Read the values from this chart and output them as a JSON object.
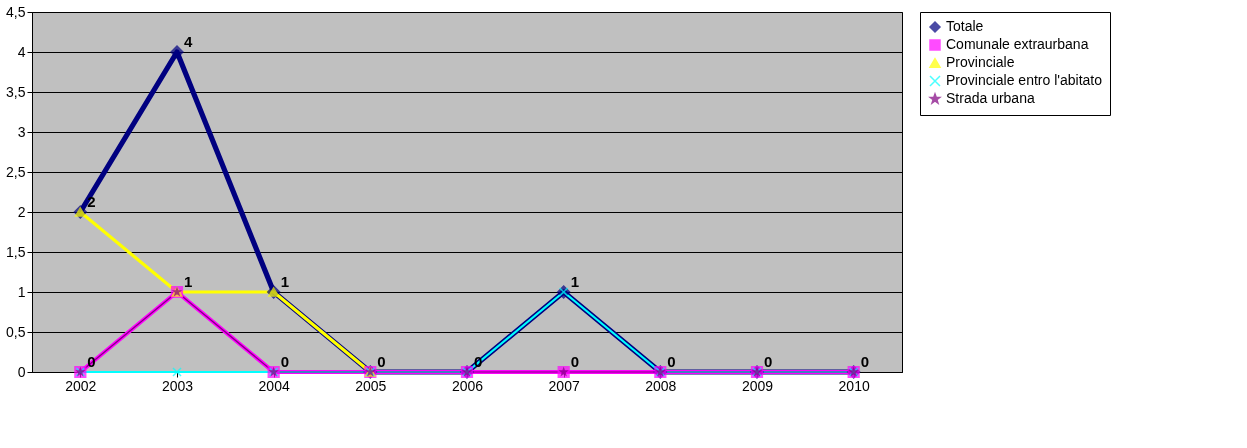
{
  "chart_data": {
    "type": "line",
    "categories": [
      "2002",
      "2003",
      "2004",
      "2005",
      "2006",
      "2007",
      "2008",
      "2009",
      "2010"
    ],
    "series": [
      {
        "name": "Totale",
        "color": "#000080",
        "marker": "diamond",
        "values": [
          2,
          4,
          1,
          0,
          0,
          1,
          0,
          0,
          0
        ],
        "value_labels": [
          "2",
          "4",
          "1",
          null,
          null,
          "1",
          null,
          null,
          null
        ]
      },
      {
        "name": "Comunale extraurbana",
        "color": "#ff00ff",
        "marker": "square",
        "values": [
          0,
          1,
          0,
          0,
          0,
          0,
          0,
          0,
          0
        ]
      },
      {
        "name": "Provinciale",
        "color": "#ffff00",
        "marker": "triangle",
        "values": [
          2,
          1,
          1,
          0,
          null,
          null,
          null,
          null,
          null
        ]
      },
      {
        "name": "Provinciale entro l'abitato",
        "color": "#00ffff",
        "marker": "cross",
        "values": [
          0,
          0,
          0,
          0,
          0,
          1,
          0,
          0,
          0
        ]
      },
      {
        "name": "Strada urbana",
        "color": "#800080",
        "marker": "star",
        "values": [
          0,
          1,
          0,
          0,
          0,
          0,
          0,
          0,
          0
        ],
        "value_labels": [
          "0",
          "1",
          "0",
          "0",
          "0",
          "0",
          "0",
          "0",
          "0"
        ]
      }
    ],
    "ylim": [
      0,
      4.5
    ],
    "yticks": [
      0,
      {
        "value": 0.5,
        "label": "0,5"
      },
      1,
      {
        "value": 1.5,
        "label": "1,5"
      },
      2,
      {
        "value": 2.5,
        "label": "2,5"
      },
      3,
      {
        "value": 3.5,
        "label": "3,5"
      },
      4,
      {
        "value": 4.5,
        "label": "4,5"
      }
    ],
    "grid": "y",
    "legend": "right"
  }
}
